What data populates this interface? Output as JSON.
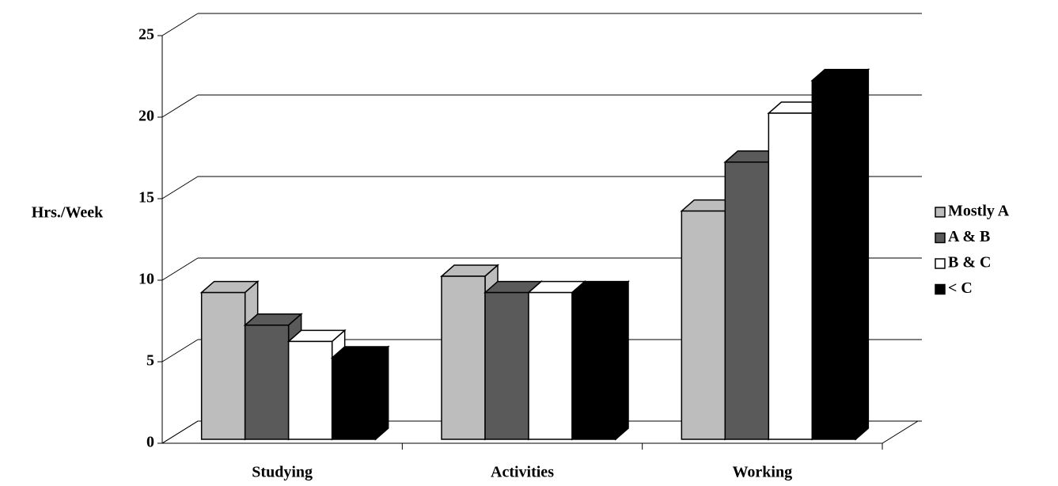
{
  "chart_data": {
    "type": "bar3d",
    "ylabel": "Hrs./Week",
    "categories": [
      "Studying",
      "Activities",
      "Working"
    ],
    "series": [
      {
        "name": "Mostly A",
        "color": "#bdbdbd",
        "values": [
          9,
          10,
          14
        ]
      },
      {
        "name": "A & B",
        "color": "#5a5a5a",
        "values": [
          7,
          9,
          17
        ]
      },
      {
        "name": "B & C",
        "color": "#ffffff",
        "values": [
          6,
          9,
          20
        ]
      },
      {
        "name": "< C",
        "color": "#000000",
        "values": [
          5,
          9,
          22
        ]
      }
    ],
    "ylim": [
      0,
      25
    ],
    "yticks": [
      0,
      5,
      10,
      15,
      20,
      25
    ],
    "grid": true,
    "legend": "right"
  }
}
